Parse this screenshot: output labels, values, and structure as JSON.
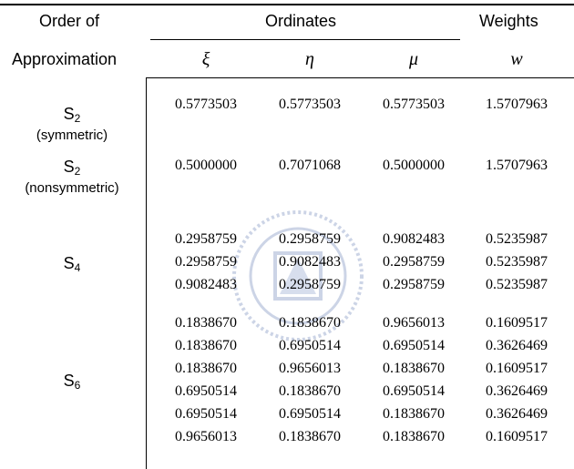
{
  "header": {
    "order_line1": "Order of",
    "order_line2": "Approximation",
    "ordinates": "Ordinates",
    "weights": "Weights",
    "xi": "ξ",
    "eta": "η",
    "mu": "μ",
    "w": "w"
  },
  "groups": [
    {
      "label": "S",
      "subscript": "2",
      "note": "(symmetric)",
      "rows": [
        [
          "0.5773503",
          "0.5773503",
          "0.5773503",
          "1.5707963"
        ]
      ]
    },
    {
      "label": "S",
      "subscript": "2",
      "note": "(nonsymmetric)",
      "rows": [
        [
          "0.5000000",
          "0.7071068",
          "0.5000000",
          "1.5707963"
        ]
      ]
    },
    {
      "label": "S",
      "subscript": "4",
      "note": "",
      "rows": [
        [
          "0.2958759",
          "0.2958759",
          "0.9082483",
          "0.5235987"
        ],
        [
          "0.2958759",
          "0.9082483",
          "0.2958759",
          "0.5235987"
        ],
        [
          "0.9082483",
          "0.2958759",
          "0.2958759",
          "0.5235987"
        ]
      ]
    },
    {
      "label": "S",
      "subscript": "6",
      "note": "",
      "rows": [
        [
          "0.1838670",
          "0.1838670",
          "0.9656013",
          "0.1609517"
        ],
        [
          "0.1838670",
          "0.6950514",
          "0.6950514",
          "0.3626469"
        ],
        [
          "0.1838670",
          "0.9656013",
          "0.1838670",
          "0.1609517"
        ],
        [
          "0.6950514",
          "0.1838670",
          "0.6950514",
          "0.3626469"
        ],
        [
          "0.6950514",
          "0.6950514",
          "0.1838670",
          "0.3626469"
        ],
        [
          "0.9656013",
          "0.1838670",
          "0.1838670",
          "0.1609517"
        ]
      ]
    }
  ]
}
